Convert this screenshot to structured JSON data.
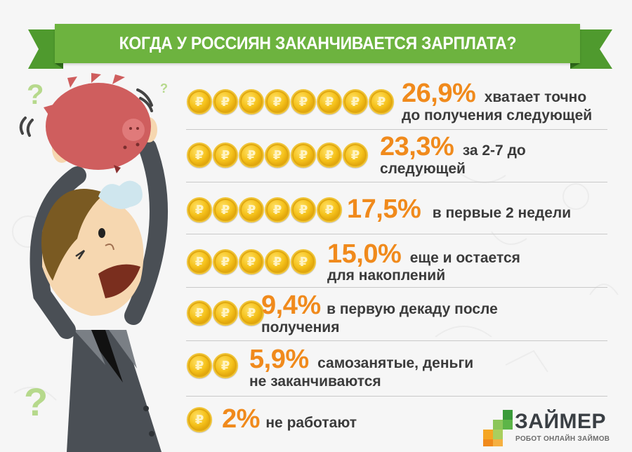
{
  "header": {
    "title": "КОГДА У РОССИЯН ЗАКАНЧИВАЕТСЯ ЗАРПЛАТА?"
  },
  "rows": [
    {
      "coins": 8,
      "percent": "26,9%",
      "line1": "хватает точно",
      "line2": "до получения следующей"
    },
    {
      "coins": 7,
      "percent": "23,3%",
      "line1": "за 2-7 до",
      "line2": "следующей"
    },
    {
      "coins": 6,
      "percent": "17,5%",
      "line1": "в первые 2 недели",
      "line2": ""
    },
    {
      "coins": 5,
      "percent": "15,0%",
      "line1": "еще и остается",
      "line2": "для накоплений"
    },
    {
      "coins": 3,
      "percent": "9,4%",
      "line1": "в первую декаду после",
      "line2": "получения"
    },
    {
      "coins": 2,
      "percent": "5,9%",
      "line1": "самозанятые, деньги",
      "line2": "не заканчиваются"
    },
    {
      "coins": 1,
      "percent": "2%",
      "line1": "не работают",
      "line2": ""
    }
  ],
  "coin_symbol": "₽",
  "logo": {
    "name": "ЗАЙМЕР",
    "tagline": "РОБОТ ОНЛАЙН ЗАЙМОВ"
  },
  "colors": {
    "banner_green": "#6db33f",
    "percent_orange": "#f08a1c",
    "text_dark": "#3b3b3b",
    "coin_gold": "#f5c21b"
  },
  "chart_data": {
    "type": "bar",
    "title": "КОГДА У РОССИЯН ЗАКАНЧИВАЕТСЯ ЗАРПЛАТА?",
    "orientation": "horizontal",
    "unit": "%",
    "categories": [
      "хватает точно до получения следующей",
      "за 2-7 до следующей",
      "в первые 2 недели",
      "еще и остается для накоплений",
      "в первую декаду после получения",
      "самозанятые, деньги не заканчиваются",
      "не работают"
    ],
    "values": [
      26.9,
      23.3,
      17.5,
      15.0,
      9.4,
      5.9,
      2
    ],
    "icon_counts": [
      8,
      7,
      6,
      5,
      3,
      2,
      1
    ],
    "xlabel": "",
    "ylabel": "",
    "grid": false,
    "legend": "none"
  }
}
